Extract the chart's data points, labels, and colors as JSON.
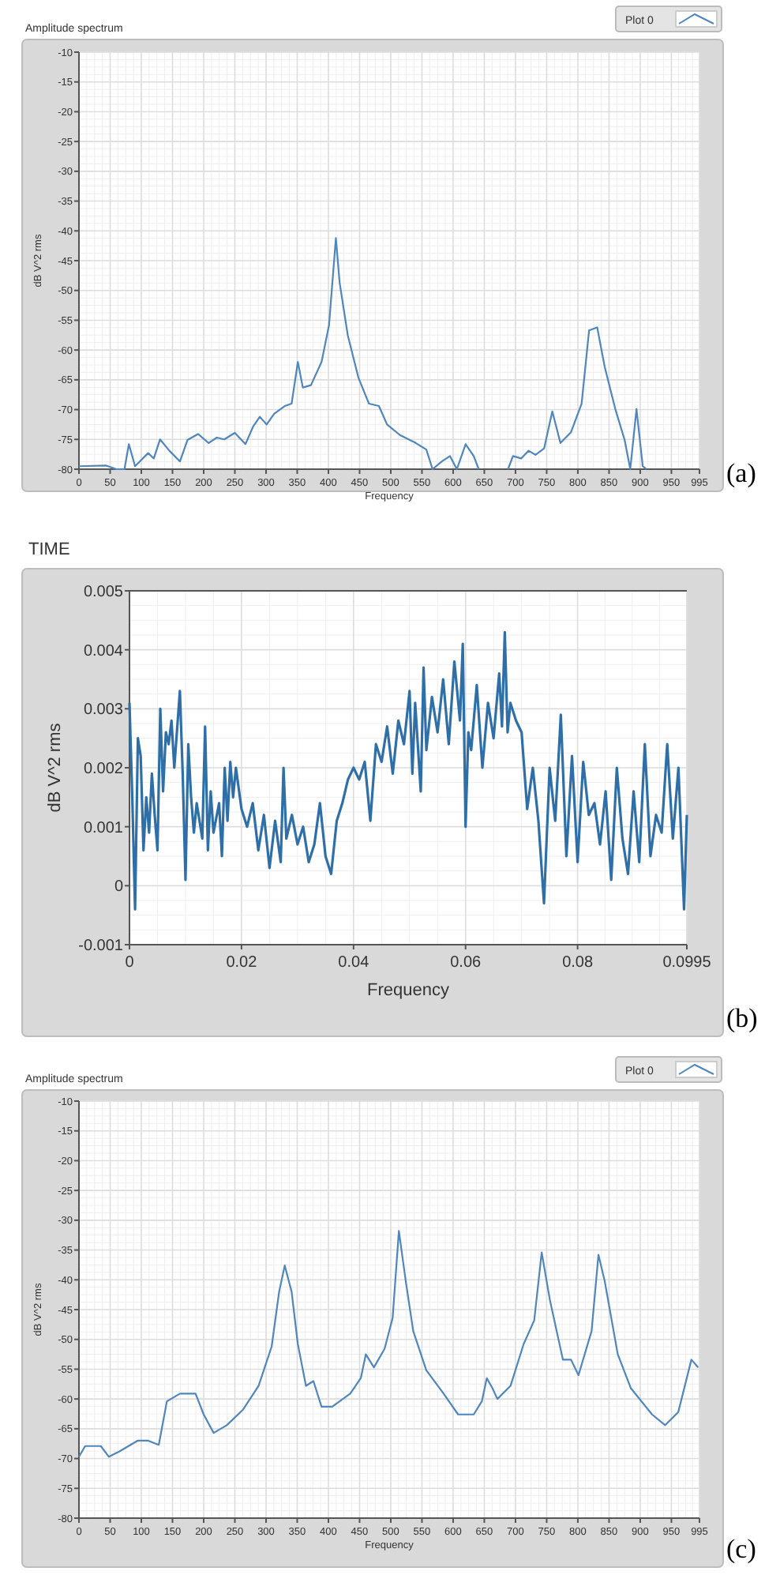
{
  "chart_data": [
    {
      "type": "line",
      "title": "Amplitude spectrum",
      "xlabel": "Frequency",
      "ylabel": "dB V^2 rms",
      "xlim": [
        0,
        995
      ],
      "ylim": [
        -80,
        -10
      ],
      "xticks": [
        0,
        50,
        100,
        150,
        200,
        250,
        300,
        350,
        400,
        450,
        500,
        550,
        600,
        650,
        700,
        750,
        800,
        850,
        900,
        950,
        995
      ],
      "yticks": [
        -10,
        -15,
        -20,
        -25,
        -30,
        -35,
        -40,
        -45,
        -50,
        -55,
        -60,
        -65,
        -70,
        -75,
        -80
      ],
      "grid": true,
      "legend": "top right",
      "annotations": [
        "(a)"
      ],
      "series": [
        {
          "name": "Plot 0",
          "color": "#4f86bd",
          "x": [
            0,
            44,
            60,
            73,
            80,
            90,
            111,
            120,
            130,
            145,
            162,
            174,
            191,
            208,
            221,
            233,
            250,
            267,
            279,
            290,
            301,
            313,
            330,
            341,
            351,
            359,
            372,
            389,
            401,
            412,
            418,
            431,
            448,
            465,
            481,
            494,
            515,
            540,
            557,
            567,
            582,
            595,
            606,
            620,
            633,
            641,
            665,
            688,
            696,
            709,
            721,
            732,
            746,
            759,
            772,
            789,
            806,
            818,
            831,
            843,
            860,
            875,
            884,
            894,
            904,
            910
          ],
          "values": [
            -79.5,
            -79.4,
            -80,
            -80,
            -75.8,
            -79.5,
            -77.3,
            -78.2,
            -75,
            -76.9,
            -78.7,
            -75.1,
            -74.1,
            -75.6,
            -74.7,
            -75,
            -73.9,
            -75.8,
            -72.9,
            -71.2,
            -72.5,
            -70.7,
            -69.4,
            -69,
            -62,
            -66.3,
            -65.9,
            -62,
            -55.8,
            -41.2,
            -48.7,
            -57.5,
            -64.6,
            -69,
            -69.4,
            -72.5,
            -74.3,
            -75.6,
            -76.7,
            -80,
            -78.7,
            -77.8,
            -80,
            -75.8,
            -77.8,
            -80,
            null,
            -80,
            -77.8,
            -78.2,
            -76.9,
            -77.6,
            -76.5,
            -70.3,
            -75.6,
            -73.8,
            -69,
            -56.7,
            -56.2,
            -62.8,
            -69.9,
            -75.1,
            -80,
            -69.9,
            -79.5,
            -80
          ]
        }
      ]
    },
    {
      "type": "line",
      "title": "TIME",
      "xlabel": "Frequency",
      "ylabel": "dB V^2 rms",
      "xlim": [
        0,
        0.0995
      ],
      "ylim": [
        -0.001,
        0.005
      ],
      "xticks": [
        0,
        0.02,
        0.04,
        0.06,
        0.08,
        0.0995
      ],
      "yticks": [
        -0.001,
        0,
        0.001,
        0.002,
        0.003,
        0.004,
        0.005
      ],
      "grid": true,
      "annotations": [
        "(b)"
      ],
      "series": [
        {
          "color": "#2f6fa8",
          "x": [
            0,
            0.0005,
            0.001,
            0.0015,
            0.002,
            0.0025,
            0.003,
            0.0035,
            0.004,
            0.0045,
            0.005,
            0.0055,
            0.006,
            0.0065,
            0.007,
            0.0075,
            0.008,
            0.009,
            0.0095,
            0.01,
            0.0105,
            0.011,
            0.0115,
            0.012,
            0.013,
            0.0135,
            0.014,
            0.0145,
            0.015,
            0.016,
            0.0165,
            0.017,
            0.0175,
            0.018,
            0.0185,
            0.019,
            0.02,
            0.021,
            0.022,
            0.023,
            0.024,
            0.025,
            0.026,
            0.027,
            0.0275,
            0.028,
            0.029,
            0.03,
            0.031,
            0.032,
            0.033,
            0.034,
            0.035,
            0.036,
            0.037,
            0.038,
            0.039,
            0.04,
            0.041,
            0.042,
            0.043,
            0.044,
            0.045,
            0.046,
            0.047,
            0.048,
            0.049,
            0.05,
            0.0505,
            0.051,
            0.052,
            0.0525,
            0.053,
            0.054,
            0.055,
            0.056,
            0.057,
            0.058,
            0.059,
            0.0595,
            0.06,
            0.0605,
            0.061,
            0.062,
            0.063,
            0.064,
            0.065,
            0.066,
            0.0665,
            0.067,
            0.0675,
            0.068,
            0.069,
            0.07,
            0.071,
            0.072,
            0.073,
            0.074,
            0.075,
            0.076,
            0.077,
            0.078,
            0.079,
            0.08,
            0.081,
            0.082,
            0.083,
            0.084,
            0.085,
            0.086,
            0.087,
            0.088,
            0.089,
            0.09,
            0.091,
            0.092,
            0.093,
            0.094,
            0.095,
            0.096,
            0.097,
            0.098,
            0.099,
            0.0995
          ],
          "values": [
            0.0031,
            0.0015,
            -0.0004,
            0.0025,
            0.0022,
            0.0006,
            0.0015,
            0.0009,
            0.0019,
            0.0012,
            0.0006,
            0.003,
            0.0016,
            0.0026,
            0.0024,
            0.0028,
            0.002,
            0.0033,
            0.0019,
            0.0001,
            0.0024,
            0.0015,
            0.0009,
            0.0014,
            0.0008,
            0.0027,
            0.0006,
            0.0016,
            0.0009,
            0.0014,
            0.0005,
            0.002,
            0.0011,
            0.0021,
            0.0015,
            0.002,
            0.0013,
            0.001,
            0.0014,
            0.0006,
            0.0012,
            0.0003,
            0.0011,
            0.0004,
            0.002,
            0.0008,
            0.0012,
            0.0007,
            0.001,
            0.0004,
            0.0007,
            0.0014,
            0.0005,
            0.0002,
            0.0011,
            0.0014,
            0.0018,
            0.002,
            0.0018,
            0.0021,
            0.0011,
            0.0024,
            0.0021,
            0.0027,
            0.0019,
            0.0028,
            0.0024,
            0.0033,
            0.0019,
            0.0031,
            0.0016,
            0.0037,
            0.0023,
            0.0032,
            0.0026,
            0.0035,
            0.0024,
            0.0038,
            0.0028,
            0.0041,
            0.001,
            0.0026,
            0.0023,
            0.0034,
            0.002,
            0.0031,
            0.0025,
            0.0036,
            0.0027,
            0.0043,
            0.0026,
            0.0031,
            0.0028,
            0.0026,
            0.0013,
            0.002,
            0.0011,
            -0.0003,
            0.002,
            0.0011,
            0.0029,
            0.0005,
            0.0022,
            0.0004,
            0.0021,
            0.0012,
            0.0014,
            0.0007,
            0.0016,
            0.0001,
            0.002,
            0.0008,
            0.0002,
            0.0016,
            0.0004,
            0.0024,
            0.0005,
            0.0012,
            0.0009,
            0.0024,
            0.0008,
            0.002,
            -0.0004,
            0.0012
          ]
        }
      ]
    },
    {
      "type": "line",
      "title": "Amplitude spectrum",
      "xlabel": "Frequency",
      "ylabel": "dB V^2 rms",
      "xlim": [
        0,
        995
      ],
      "ylim": [
        -80,
        -10
      ],
      "xticks": [
        0,
        50,
        100,
        150,
        200,
        250,
        300,
        350,
        400,
        450,
        500,
        550,
        600,
        650,
        700,
        750,
        800,
        850,
        900,
        950,
        995
      ],
      "yticks": [
        -10,
        -15,
        -20,
        -25,
        -30,
        -35,
        -40,
        -45,
        -50,
        -55,
        -60,
        -65,
        -70,
        -75,
        -80
      ],
      "grid": true,
      "legend": "top right",
      "annotations": [
        "(c)"
      ],
      "series": [
        {
          "name": "Plot 0",
          "color": "#4f86bd",
          "x": [
            0,
            10,
            35,
            48,
            65,
            94,
            111,
            128,
            141,
            162,
            187,
            200,
            216,
            237,
            263,
            288,
            309,
            321,
            330,
            341,
            351,
            364,
            376,
            389,
            406,
            435,
            452,
            460,
            473,
            490,
            503,
            513,
            524,
            536,
            557,
            582,
            608,
            633,
            646,
            654,
            663,
            671,
            692,
            713,
            730,
            742,
            755,
            776,
            789,
            801,
            822,
            833,
            843,
            864,
            885,
            919,
            940,
            961,
            982,
            993
          ],
          "values": [
            -69.7,
            -67.9,
            -67.9,
            -69.7,
            -68.8,
            -67,
            -67,
            -67.7,
            -60.4,
            -59.1,
            -59.1,
            -62.6,
            -65.7,
            -64.4,
            -61.8,
            -57.8,
            -51.2,
            -42,
            -37.6,
            -42,
            -50.8,
            -57.8,
            -57,
            -61.3,
            -61.3,
            -59.1,
            -56.5,
            -52.5,
            -54.7,
            -51.6,
            -46.4,
            -31.8,
            -40.2,
            -48.6,
            -55.2,
            -58.7,
            -62.6,
            -62.6,
            -60.4,
            -56.5,
            -58.2,
            -60,
            -57.8,
            -50.8,
            -46.8,
            -35.4,
            -43.3,
            -53.4,
            -53.4,
            -56,
            -48.6,
            -35.8,
            -40.2,
            -52.5,
            -58.2,
            -62.6,
            -64.4,
            -62.2,
            -53.4,
            -54.7
          ]
        }
      ]
    }
  ]
}
